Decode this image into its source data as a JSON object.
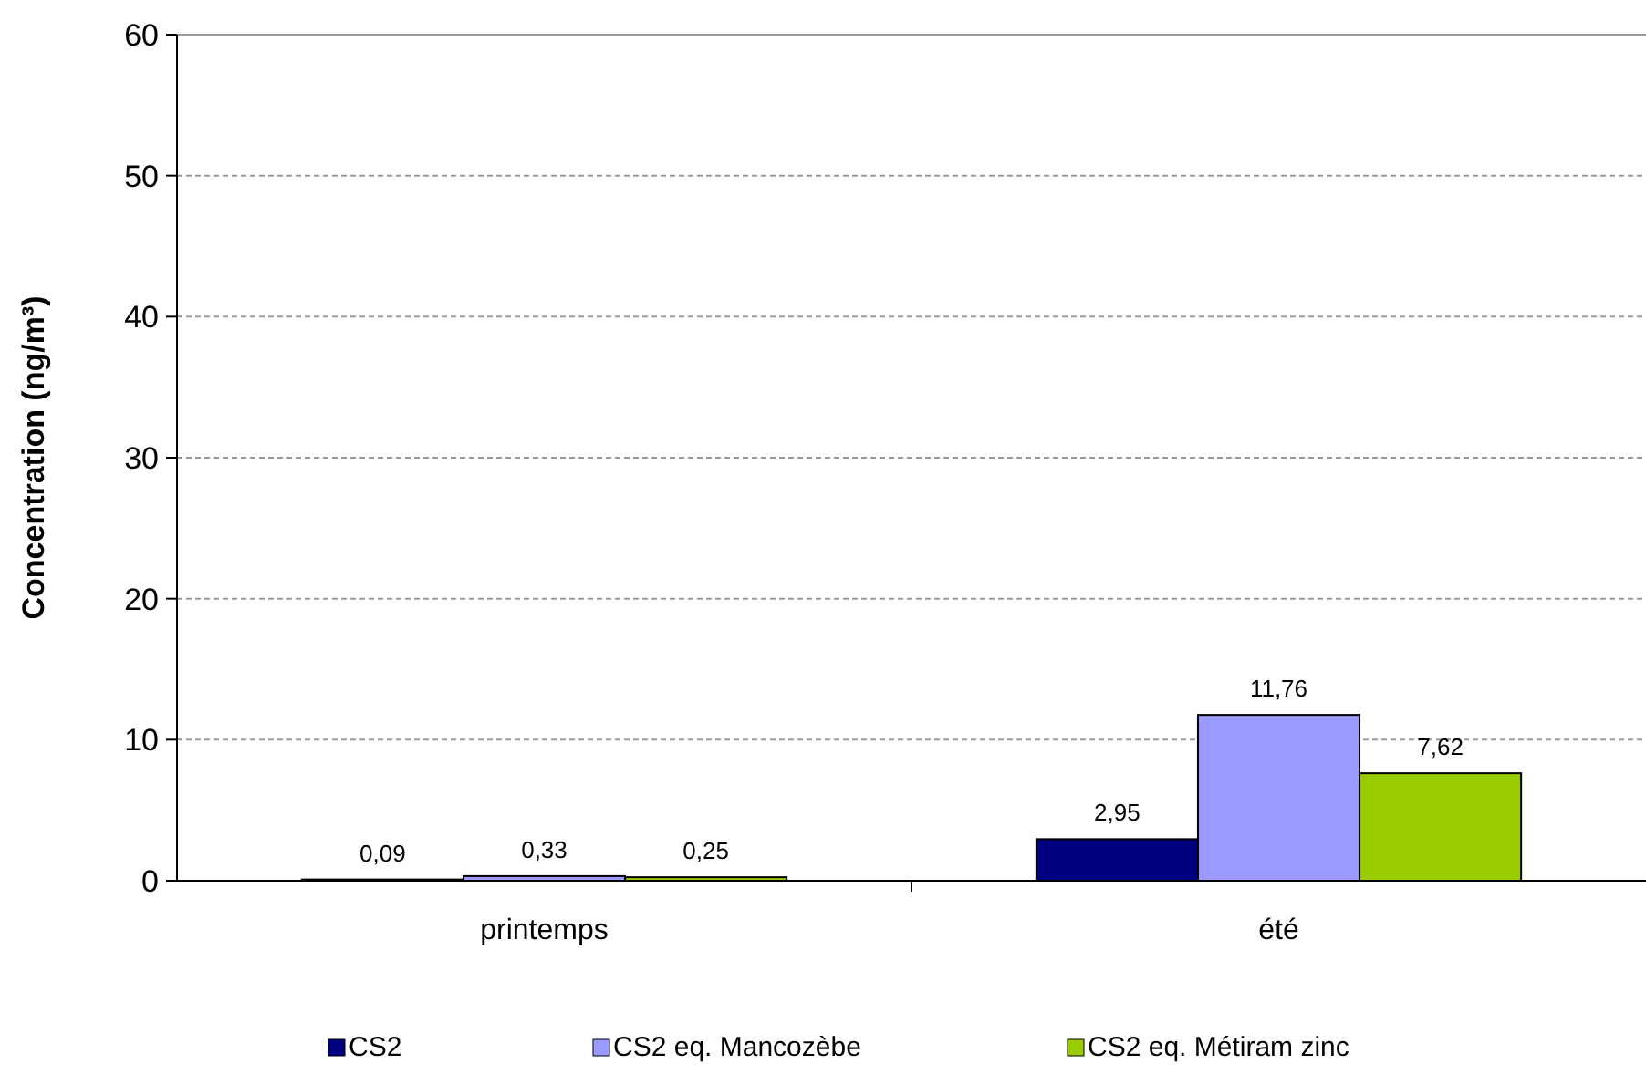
{
  "chart_data": {
    "type": "bar",
    "ylabel": "Concentration (ng/m³)",
    "categories": [
      "printemps",
      "été"
    ],
    "series": [
      {
        "name": "CS2",
        "color": "#000080",
        "values": [
          0.09,
          2.95
        ],
        "value_labels": [
          "0,09",
          "2,95"
        ]
      },
      {
        "name": "CS2 eq. Mancozèbe",
        "color": "#9999ff",
        "values": [
          0.33,
          11.76
        ],
        "value_labels": [
          "0,33",
          "11,76"
        ]
      },
      {
        "name": "CS2 eq. Métiram zinc",
        "color": "#99cc00",
        "values": [
          0.25,
          7.62
        ],
        "value_labels": [
          "0,25",
          "7,62"
        ]
      }
    ],
    "ylim": [
      0,
      60
    ],
    "yticks": [
      0,
      10,
      20,
      30,
      40,
      50,
      60
    ],
    "grid": "y",
    "legend": "bottom"
  }
}
